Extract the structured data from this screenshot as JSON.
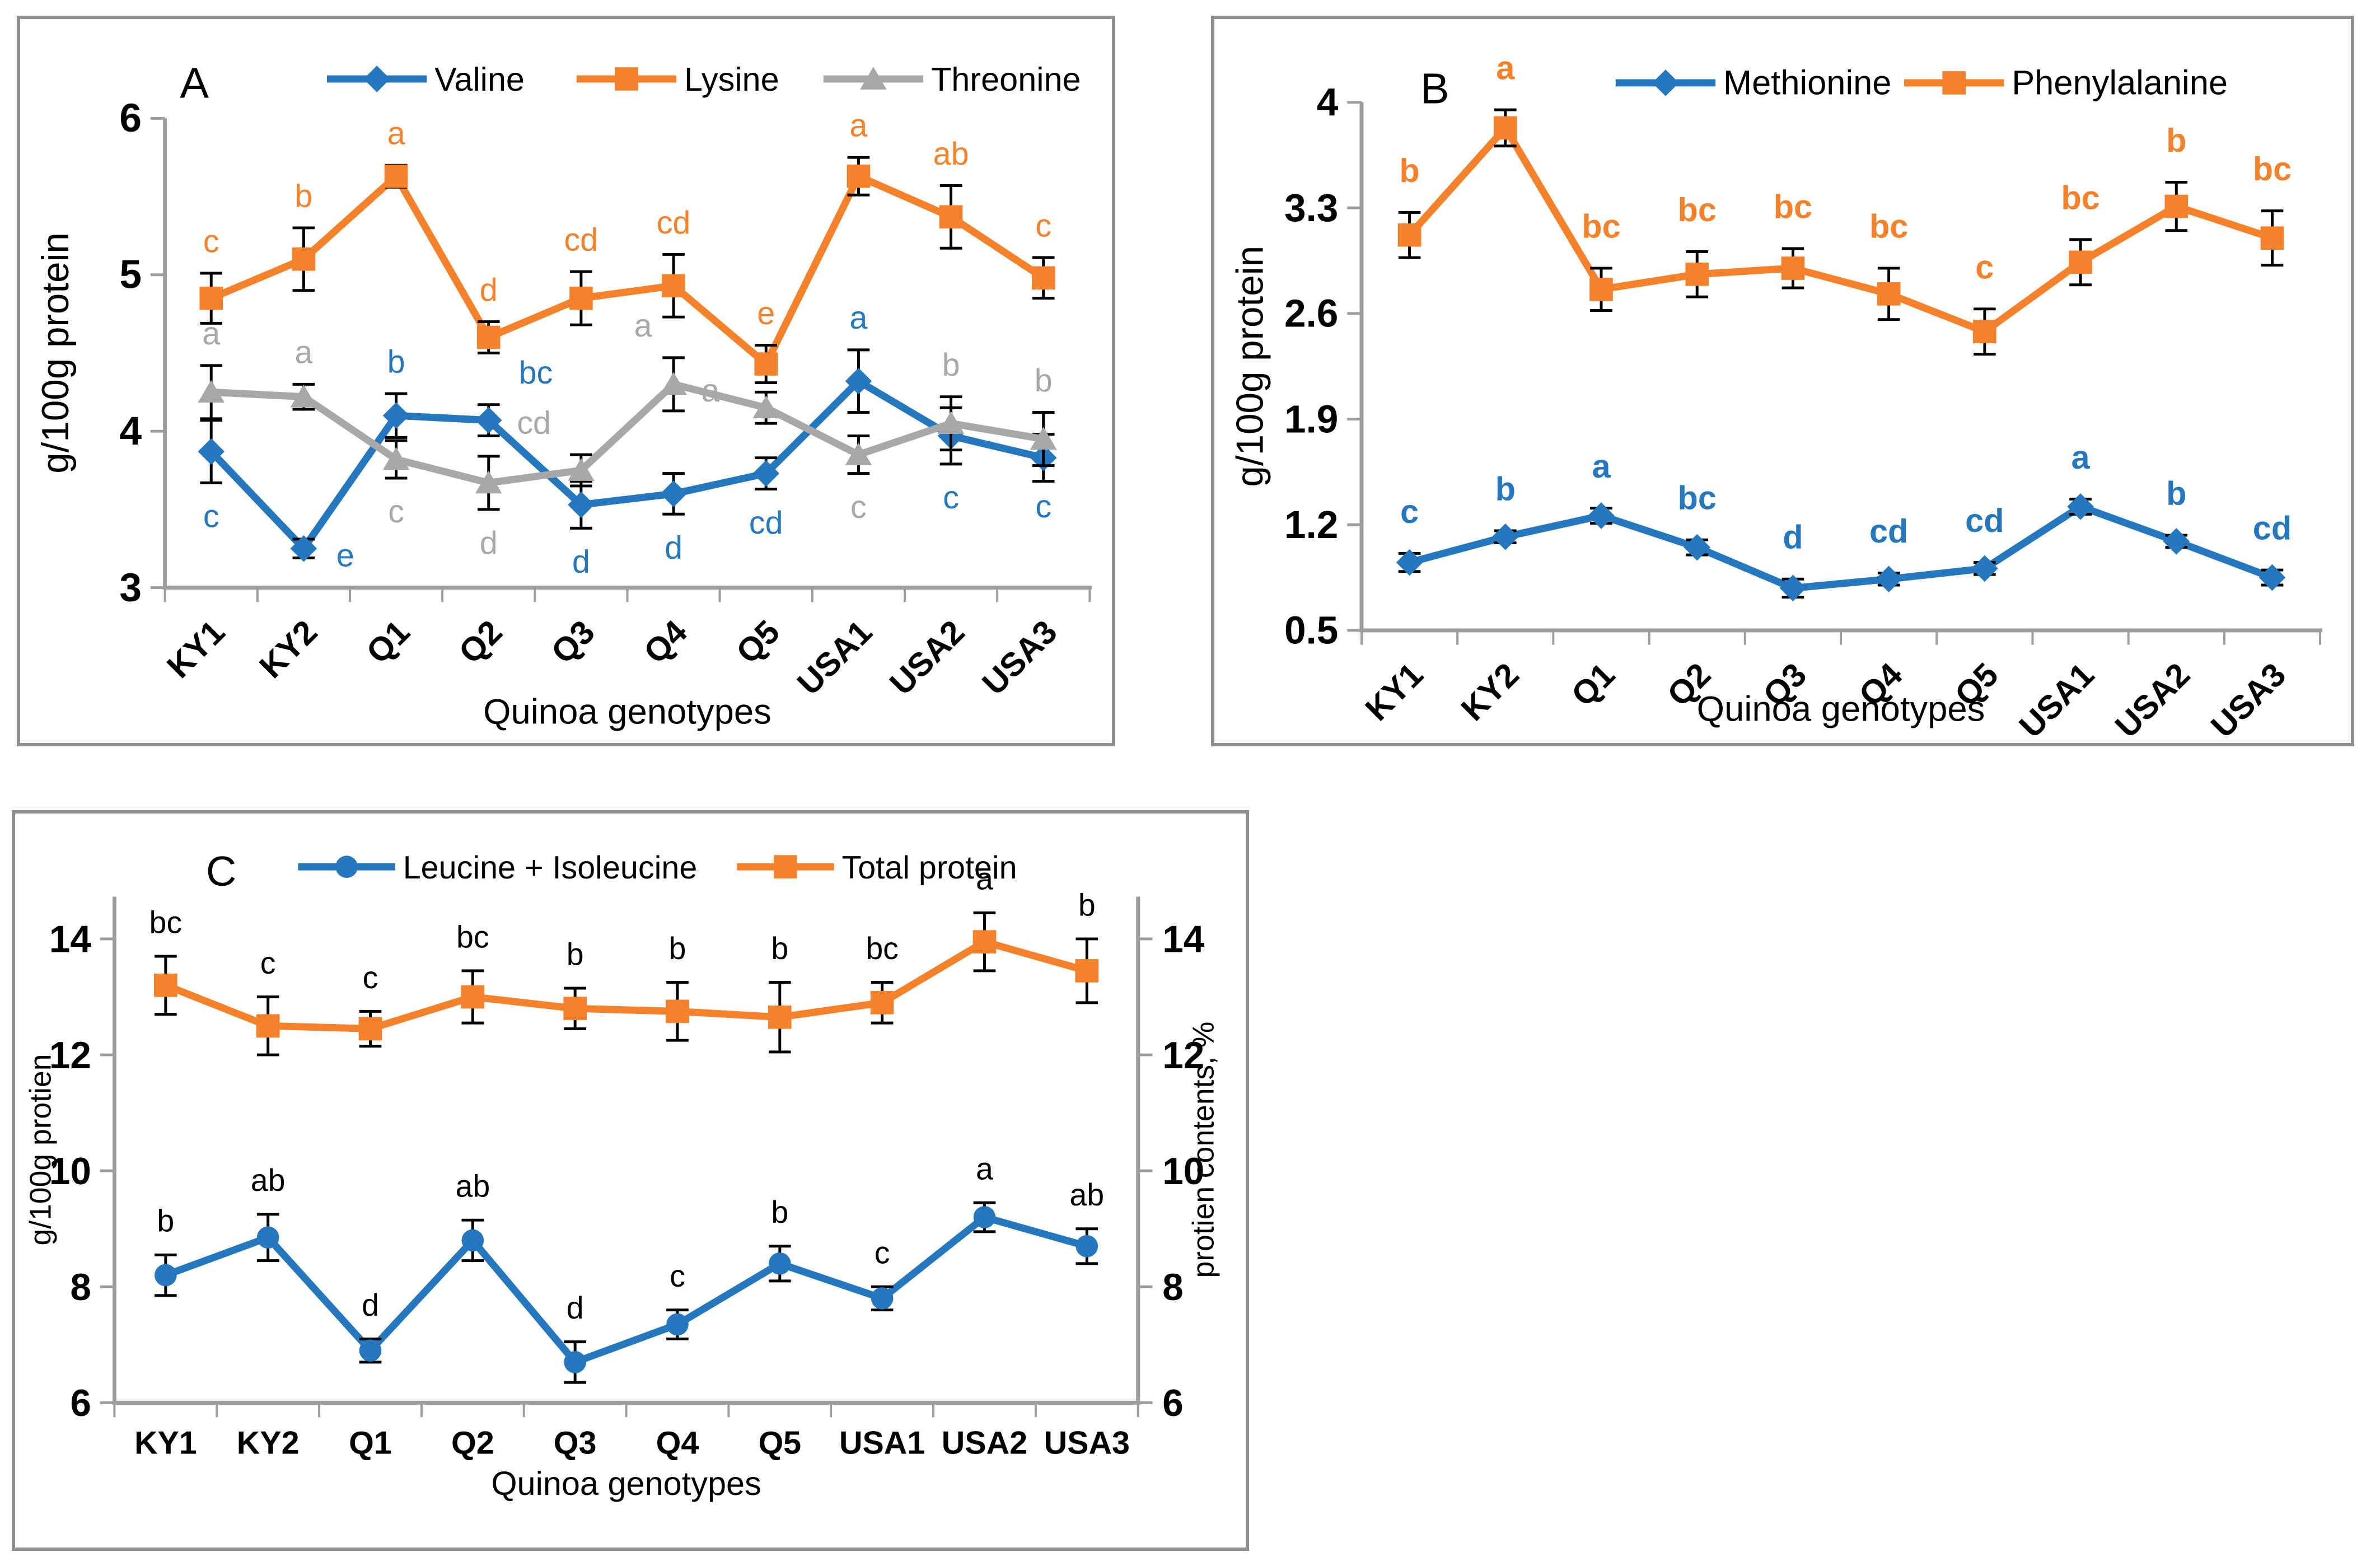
{
  "figure": {
    "background": "#ffffff",
    "panel_border_color": "#8e8e8e",
    "axis_color": "#9d9d9d",
    "error_bar_color": "#000000",
    "text_color": "#000000"
  },
  "palette": {
    "blue": "#2577BE",
    "orange": "#F5822A",
    "gray": "#A8A8A8",
    "black": "#000000"
  },
  "chart_data": [
    {
      "id": "A",
      "type": "line",
      "title": "A",
      "xlabel": "Quinoa genotypes",
      "ylabel": "g/100g protein",
      "ylim": [
        3,
        6
      ],
      "yticks": [
        3,
        4,
        5,
        6
      ],
      "xticklabel_rotation": 45,
      "legend_position": "top",
      "letter_color": "series",
      "categories": [
        "KY1",
        "KY2",
        "Q1",
        "Q2",
        "Q3",
        "Q4",
        "Q5",
        "USA1",
        "USA2",
        "USA3"
      ],
      "series": [
        {
          "name": "Valine",
          "color": "blue",
          "marker": "diamond",
          "values": [
            3.87,
            3.25,
            4.1,
            4.07,
            3.53,
            3.6,
            3.73,
            4.32,
            3.97,
            3.83
          ],
          "errors": [
            0.2,
            0.06,
            0.14,
            0.1,
            0.15,
            0.13,
            0.1,
            0.2,
            0.18,
            0.15
          ],
          "letters": [
            {
              "t": "c",
              "p": "below"
            },
            {
              "t": "e",
              "p": "below",
              "dx": 75,
              "dy": -65
            },
            {
              "t": "b",
              "p": "above"
            },
            {
              "t": "bc",
              "p": "above",
              "dx": 85
            },
            {
              "t": "d",
              "p": "below"
            },
            {
              "t": "d",
              "p": "below"
            },
            {
              "t": "cd",
              "p": "below"
            },
            {
              "t": "a",
              "p": "above"
            },
            {
              "t": "c",
              "p": "below"
            },
            {
              "t": "c",
              "p": "below",
              "dy": -15
            }
          ]
        },
        {
          "name": "Lysine",
          "color": "orange",
          "marker": "square",
          "values": [
            4.85,
            5.1,
            5.63,
            4.6,
            4.85,
            4.93,
            4.43,
            5.63,
            5.37,
            4.98
          ],
          "errors": [
            0.16,
            0.2,
            0.07,
            0.1,
            0.17,
            0.2,
            0.12,
            0.12,
            0.2,
            0.13
          ],
          "letters": [
            {
              "t": "c",
              "p": "above"
            },
            {
              "t": "b",
              "p": "above"
            },
            {
              "t": "a",
              "p": "above"
            },
            {
              "t": "d",
              "p": "above"
            },
            {
              "t": "cd",
              "p": "above"
            },
            {
              "t": "cd",
              "p": "above"
            },
            {
              "t": "e",
              "p": "above"
            },
            {
              "t": "a",
              "p": "above"
            },
            {
              "t": "ab",
              "p": "above"
            },
            {
              "t": "c",
              "p": "above"
            }
          ]
        },
        {
          "name": "Threonine",
          "color": "gray",
          "marker": "triangle",
          "values": [
            4.25,
            4.22,
            3.82,
            3.67,
            3.75,
            4.3,
            4.15,
            3.85,
            4.05,
            3.95
          ],
          "errors": [
            0.17,
            0.08,
            0.12,
            0.17,
            0.1,
            0.17,
            0.1,
            0.12,
            0.17,
            0.17
          ],
          "letters": [
            {
              "t": "a",
              "p": "above"
            },
            {
              "t": "a",
              "p": "above"
            },
            {
              "t": "c",
              "p": "below"
            },
            {
              "t": "d",
              "p": "below"
            },
            {
              "t": "cd",
              "p": "above",
              "dx": -85
            },
            {
              "t": "a",
              "p": "above",
              "dx": -55
            },
            {
              "t": "a",
              "p": "above",
              "dx": -100,
              "dy": 55
            },
            {
              "t": "c",
              "p": "below"
            },
            {
              "t": "b",
              "p": "above"
            },
            {
              "t": "b",
              "p": "above"
            }
          ]
        }
      ]
    },
    {
      "id": "B",
      "type": "line",
      "title": "B",
      "xlabel": "Quinoa genotypes",
      "ylabel": "g/100g protein",
      "ylim": [
        0.5,
        4
      ],
      "yticks": [
        0.5,
        1.2,
        1.9,
        2.6,
        3.3,
        4
      ],
      "xticklabel_rotation": 45,
      "legend_position": "top",
      "letter_color": "series",
      "categories": [
        "KY1",
        "KY2",
        "Q1",
        "Q2",
        "Q3",
        "Q4",
        "Q5",
        "USA1",
        "USA2",
        "USA3"
      ],
      "series": [
        {
          "name": "Methionine",
          "color": "blue",
          "marker": "diamond",
          "values": [
            0.95,
            1.12,
            1.26,
            1.05,
            0.78,
            0.84,
            0.91,
            1.32,
            1.09,
            0.85
          ],
          "errors": [
            0.06,
            0.04,
            0.05,
            0.05,
            0.06,
            0.04,
            0.04,
            0.05,
            0.04,
            0.05
          ],
          "letters": [
            {
              "t": "c",
              "p": "above"
            },
            {
              "t": "b",
              "p": "above"
            },
            {
              "t": "a",
              "p": "above"
            },
            {
              "t": "bc",
              "p": "above"
            },
            {
              "t": "d",
              "p": "above"
            },
            {
              "t": "cd",
              "p": "above"
            },
            {
              "t": "cd",
              "p": "above"
            },
            {
              "t": "a",
              "p": "above"
            },
            {
              "t": "b",
              "p": "above"
            },
            {
              "t": "cd",
              "p": "above"
            }
          ]
        },
        {
          "name": "Phenylalanine",
          "color": "orange",
          "marker": "square",
          "values": [
            3.12,
            3.83,
            2.76,
            2.86,
            2.9,
            2.73,
            2.48,
            2.94,
            3.31,
            3.1
          ],
          "errors": [
            0.15,
            0.12,
            0.14,
            0.15,
            0.13,
            0.17,
            0.15,
            0.15,
            0.16,
            0.18
          ],
          "letters": [
            {
              "t": "b",
              "p": "above"
            },
            {
              "t": "a",
              "p": "above"
            },
            {
              "t": "bc",
              "p": "above"
            },
            {
              "t": "bc",
              "p": "above"
            },
            {
              "t": "bc",
              "p": "above"
            },
            {
              "t": "bc",
              "p": "above"
            },
            {
              "t": "c",
              "p": "above"
            },
            {
              "t": "bc",
              "p": "above"
            },
            {
              "t": "b",
              "p": "above"
            },
            {
              "t": "bc",
              "p": "above"
            }
          ]
        }
      ]
    },
    {
      "id": "C",
      "type": "line",
      "title": "C",
      "xlabel": "Quinoa genotypes",
      "ylabel": "g/100g protien",
      "ylabel_right": "protien contents, %",
      "ylim": [
        6,
        14
      ],
      "yticks": [
        6,
        8,
        10,
        12,
        14
      ],
      "yticks_right": [
        6,
        8,
        10,
        12,
        14
      ],
      "xticklabel_rotation": 0,
      "legend_position": "top",
      "letter_color": "black",
      "categories": [
        "KY1",
        "KY2",
        "Q1",
        "Q2",
        "Q3",
        "Q4",
        "Q5",
        "USA1",
        "USA2",
        "USA3"
      ],
      "series": [
        {
          "name": "Leucine + Isoleucine",
          "color": "blue",
          "marker": "circle",
          "values": [
            8.2,
            8.85,
            6.9,
            8.8,
            6.7,
            7.35,
            8.4,
            7.8,
            9.2,
            8.7
          ],
          "errors": [
            0.35,
            0.4,
            0.2,
            0.35,
            0.35,
            0.25,
            0.3,
            0.2,
            0.25,
            0.3
          ],
          "letters": [
            {
              "t": "b",
              "p": "above"
            },
            {
              "t": "ab",
              "p": "above"
            },
            {
              "t": "d",
              "p": "above"
            },
            {
              "t": "ab",
              "p": "above"
            },
            {
              "t": "d",
              "p": "above"
            },
            {
              "t": "c",
              "p": "above"
            },
            {
              "t": "b",
              "p": "above"
            },
            {
              "t": "c",
              "p": "above"
            },
            {
              "t": "a",
              "p": "above"
            },
            {
              "t": "ab",
              "p": "above"
            }
          ]
        },
        {
          "name": "Total protein",
          "color": "orange",
          "marker": "square",
          "values": [
            13.2,
            12.5,
            12.45,
            13.0,
            12.8,
            12.75,
            12.65,
            12.9,
            13.95,
            13.45
          ],
          "errors": [
            0.5,
            0.5,
            0.3,
            0.45,
            0.35,
            0.5,
            0.6,
            0.35,
            0.5,
            0.55
          ],
          "letters": [
            {
              "t": "bc",
              "p": "above"
            },
            {
              "t": "c",
              "p": "above"
            },
            {
              "t": "c",
              "p": "above"
            },
            {
              "t": "bc",
              "p": "above"
            },
            {
              "t": "b",
              "p": "above"
            },
            {
              "t": "b",
              "p": "above"
            },
            {
              "t": "b",
              "p": "above"
            },
            {
              "t": "bc",
              "p": "above"
            },
            {
              "t": "a",
              "p": "above"
            },
            {
              "t": "b",
              "p": "above"
            }
          ]
        }
      ]
    }
  ]
}
